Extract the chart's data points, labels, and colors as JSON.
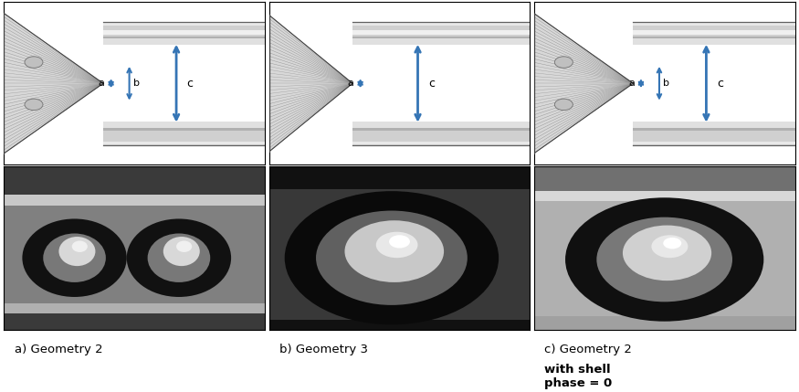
{
  "background_color": "#ffffff",
  "border_color": "#000000",
  "arrow_color": "#3575b5",
  "label_fontsize": 8,
  "caption_fontsize": 9.5,
  "fig_width": 8.75,
  "fig_height": 4.29,
  "dpi": 100,
  "tube_outer_color": "#c8c8c8",
  "tube_inner_wall_color": "#e8e8e8",
  "tube_highlight_color": "#f8f8f8",
  "tube_groove_color": "#b0b0b0",
  "tube_white": "#ffffff",
  "nozzle_bg": "#e0e0e0",
  "nozzle_line_color": "#888888",
  "nozzle_dark": "#505050",
  "caption_texts": [
    "a) Geometry 2",
    "b) Geometry 3",
    "c) Geometry 2 "
  ],
  "caption_bold": [
    "",
    "",
    "with shell\nphase = 0"
  ]
}
